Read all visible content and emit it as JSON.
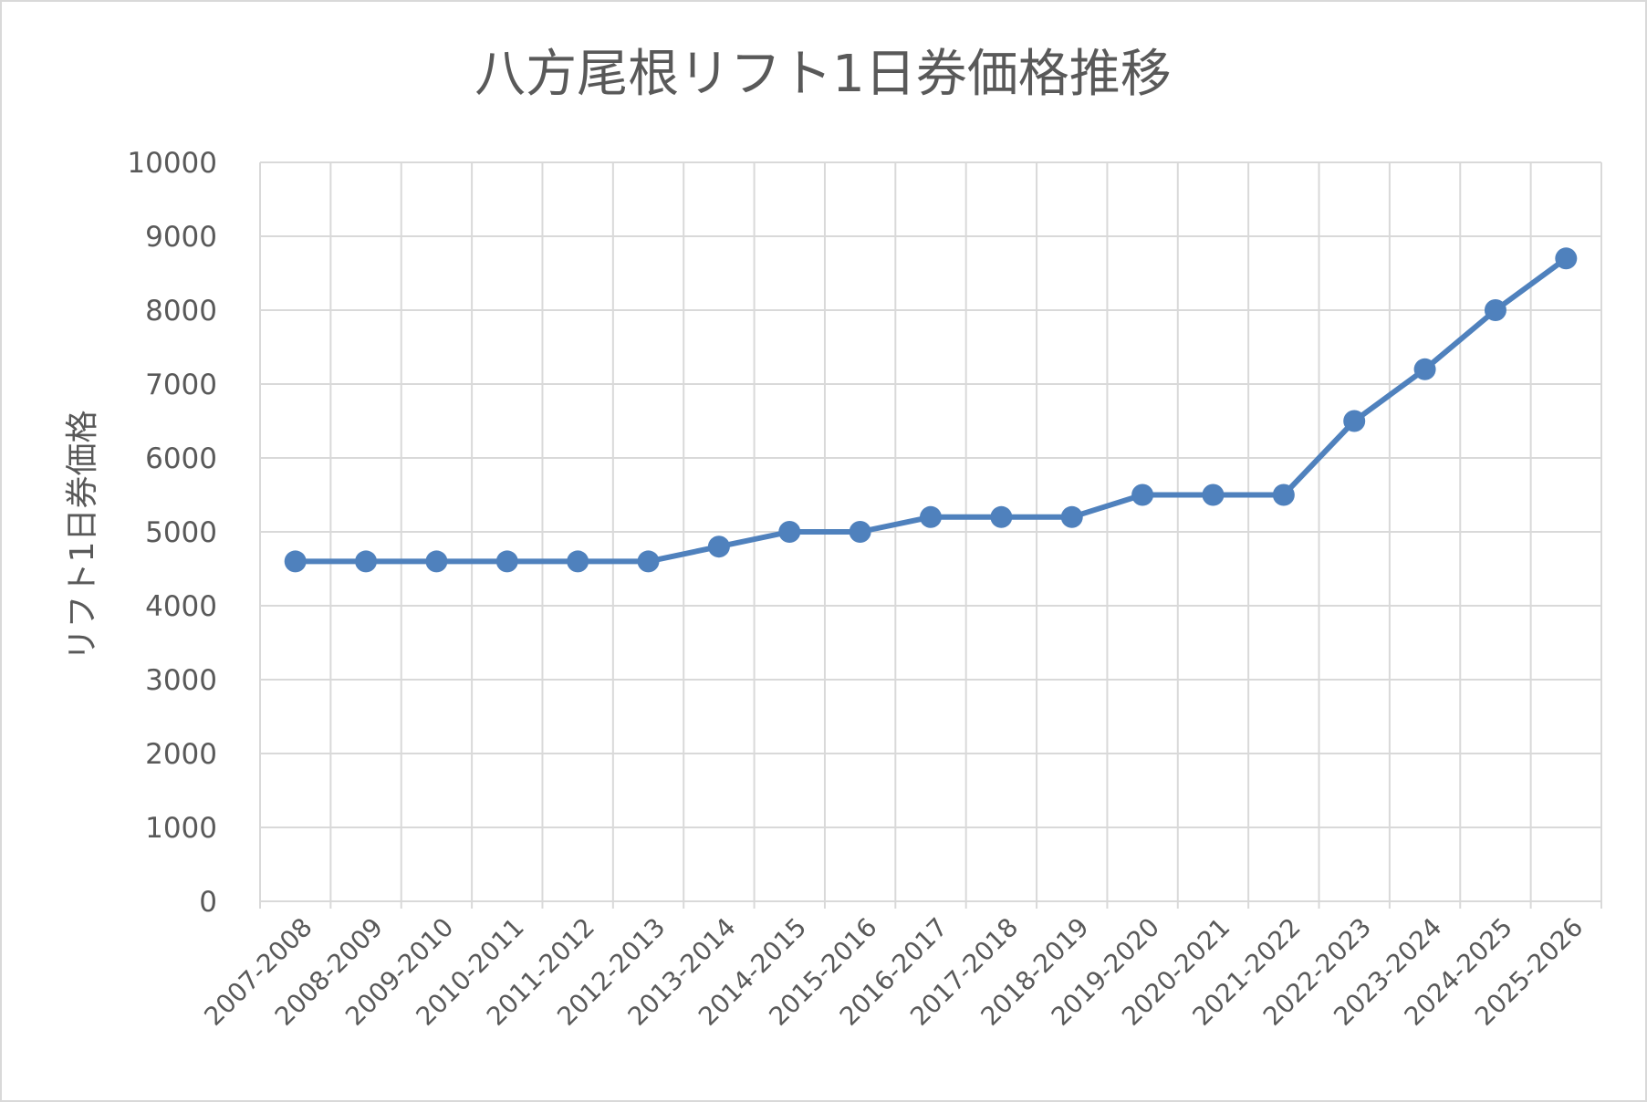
{
  "chart_data": {
    "type": "line",
    "title": "八方尾根リフト1日券価格推移",
    "xlabel": "",
    "ylabel": "リフト1日券価格",
    "ylim": [
      0,
      10000
    ],
    "yticks": [
      0,
      1000,
      2000,
      3000,
      4000,
      5000,
      6000,
      7000,
      8000,
      9000,
      10000
    ],
    "grid": true,
    "legend": "none",
    "categories": [
      "2007-2008",
      "2008-2009",
      "2009-2010",
      "2010-2011",
      "2011-2012",
      "2012-2013",
      "2013-2014",
      "2014-2015",
      "2015-2016",
      "2016-2017",
      "2017-2018",
      "2018-2019",
      "2019-2020",
      "2020-2021",
      "2021-2022",
      "2022-2023",
      "2023-2024",
      "2024-2025",
      "2025-2026"
    ],
    "series": [
      {
        "values": [
          4600,
          4600,
          4600,
          4600,
          4600,
          4600,
          4800,
          5000,
          5000,
          5200,
          5200,
          5200,
          5500,
          5500,
          5500,
          6500,
          7200,
          8000,
          8700
        ],
        "color": "#4f81bd",
        "marker": "circle"
      }
    ]
  }
}
